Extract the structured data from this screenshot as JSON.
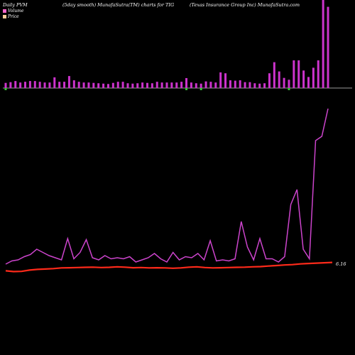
{
  "header": {
    "left": "Daily PVM",
    "center": "(5day smooth) MunafaSutra(TM) charts for TIG",
    "right": "(Texas Insurance Group Inc) MunafaSutra.com"
  },
  "legend": [
    {
      "label": "Volume",
      "color": "#ff66cc"
    },
    {
      "label": "Price",
      "color": "#ffcc99"
    }
  ],
  "colors": {
    "volume_bar": "#cc33cc",
    "volume_bar_down": "#33cc33",
    "volume_line": "#cc44cc",
    "price_line": "#ff2a1a",
    "baseline": "#9a9a9a"
  },
  "chart_data": {
    "type": "bar",
    "price_last_label": "6.16",
    "volume_bars": [
      0.28,
      0.32,
      0.38,
      0.3,
      0.34,
      0.38,
      0.38,
      0.34,
      0.3,
      0.3,
      0.58,
      0.34,
      0.34,
      0.65,
      0.42,
      0.34,
      0.3,
      0.3,
      0.28,
      0.26,
      0.24,
      0.22,
      0.28,
      0.34,
      0.34,
      0.26,
      0.24,
      0.26,
      0.3,
      0.28,
      0.26,
      0.34,
      0.3,
      0.3,
      0.3,
      0.3,
      0.34,
      0.54,
      0.3,
      0.26,
      0.24,
      0.36,
      0.34,
      0.3,
      0.85,
      0.8,
      0.42,
      0.4,
      0.42,
      0.32,
      0.32,
      0.26,
      0.24,
      0.26,
      0.8,
      1.4,
      0.9,
      0.55,
      0.45,
      1.5,
      1.5,
      0.95,
      0.6,
      1.1,
      1.5,
      4.8,
      4.4
    ],
    "volume_down": [
      1,
      0,
      0,
      0,
      0,
      0,
      0,
      0,
      0,
      0,
      0,
      0,
      0,
      0,
      0,
      0,
      0,
      0,
      0,
      0,
      0,
      0,
      0,
      0,
      0,
      0,
      0,
      0,
      0,
      0,
      0,
      0,
      0,
      0,
      0,
      0,
      0,
      1,
      0,
      0,
      1,
      0,
      0,
      0,
      0,
      0,
      0,
      0,
      0,
      0,
      0,
      0,
      0,
      0,
      0,
      0,
      0,
      0,
      1,
      0,
      0,
      0,
      0,
      0,
      0,
      0,
      0
    ],
    "volume_line": [
      0.2,
      0.35,
      0.4,
      0.55,
      0.65,
      0.9,
      0.75,
      0.6,
      0.5,
      0.4,
      1.4,
      0.45,
      0.75,
      1.35,
      0.5,
      0.4,
      0.6,
      0.45,
      0.5,
      0.45,
      0.55,
      0.3,
      0.4,
      0.5,
      0.7,
      0.45,
      0.3,
      0.75,
      0.4,
      0.55,
      0.5,
      0.7,
      0.4,
      1.3,
      0.35,
      0.4,
      0.35,
      0.45,
      2.2,
      1.0,
      0.4,
      1.4,
      0.45,
      0.45,
      0.3,
      0.55,
      3.0,
      3.7,
      0.9,
      0.45,
      6.0,
      6.2,
      7.5
    ],
    "price_line": [
      5.7,
      5.66,
      5.67,
      5.74,
      5.78,
      5.8,
      5.82,
      5.86,
      5.87,
      5.88,
      5.89,
      5.9,
      5.88,
      5.89,
      5.92,
      5.9,
      5.87,
      5.88,
      5.86,
      5.87,
      5.86,
      5.84,
      5.86,
      5.9,
      5.92,
      5.88,
      5.86,
      5.87,
      5.88,
      5.89,
      5.9,
      5.92,
      5.93,
      5.96,
      5.99,
      6.02,
      6.04,
      6.08,
      6.1,
      6.12,
      6.14,
      6.16
    ]
  }
}
